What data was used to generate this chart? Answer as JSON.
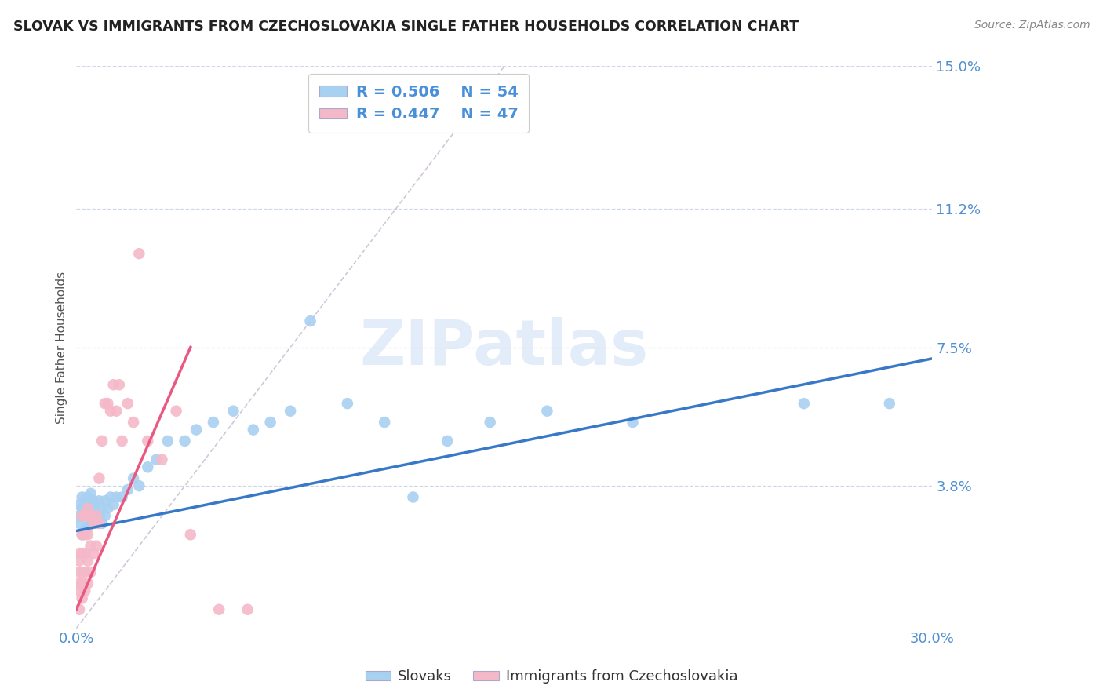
{
  "title": "SLOVAK VS IMMIGRANTS FROM CZECHOSLOVAKIA SINGLE FATHER HOUSEHOLDS CORRELATION CHART",
  "source": "Source: ZipAtlas.com",
  "ylabel": "Single Father Households",
  "xlim": [
    0.0,
    0.3
  ],
  "ylim": [
    0.0,
    0.15
  ],
  "xticks": [
    0.0,
    0.05,
    0.1,
    0.15,
    0.2,
    0.25,
    0.3
  ],
  "xticklabels": [
    "0.0%",
    "",
    "",
    "",
    "",
    "",
    "30.0%"
  ],
  "ytick_positions": [
    0.038,
    0.075,
    0.112,
    0.15
  ],
  "ytick_labels": [
    "3.8%",
    "7.5%",
    "11.2%",
    "15.0%"
  ],
  "blue_R": "0.506",
  "blue_N": "54",
  "pink_R": "0.447",
  "pink_N": "47",
  "blue_color": "#a8d0f0",
  "pink_color": "#f5b8c8",
  "blue_line_color": "#3878c8",
  "pink_line_color": "#e85880",
  "legend_label_blue": "Slovaks",
  "legend_label_pink": "Immigrants from Czechoslovakia",
  "blue_scatter_x": [
    0.001,
    0.001,
    0.001,
    0.002,
    0.002,
    0.002,
    0.002,
    0.003,
    0.003,
    0.003,
    0.004,
    0.004,
    0.004,
    0.005,
    0.005,
    0.005,
    0.006,
    0.006,
    0.007,
    0.007,
    0.008,
    0.008,
    0.009,
    0.009,
    0.01,
    0.01,
    0.011,
    0.012,
    0.013,
    0.014,
    0.016,
    0.018,
    0.02,
    0.022,
    0.025,
    0.028,
    0.032,
    0.038,
    0.042,
    0.048,
    0.055,
    0.062,
    0.068,
    0.075,
    0.082,
    0.095,
    0.108,
    0.118,
    0.13,
    0.145,
    0.165,
    0.195,
    0.255,
    0.285
  ],
  "blue_scatter_y": [
    0.028,
    0.03,
    0.033,
    0.025,
    0.03,
    0.032,
    0.035,
    0.026,
    0.03,
    0.034,
    0.027,
    0.031,
    0.035,
    0.028,
    0.032,
    0.036,
    0.03,
    0.034,
    0.028,
    0.033,
    0.03,
    0.034,
    0.028,
    0.032,
    0.03,
    0.034,
    0.032,
    0.035,
    0.033,
    0.035,
    0.035,
    0.037,
    0.04,
    0.038,
    0.043,
    0.045,
    0.05,
    0.05,
    0.053,
    0.055,
    0.058,
    0.053,
    0.055,
    0.058,
    0.082,
    0.06,
    0.055,
    0.035,
    0.05,
    0.055,
    0.058,
    0.055,
    0.06,
    0.06
  ],
  "pink_scatter_x": [
    0.001,
    0.001,
    0.001,
    0.001,
    0.001,
    0.001,
    0.002,
    0.002,
    0.002,
    0.002,
    0.002,
    0.002,
    0.003,
    0.003,
    0.003,
    0.003,
    0.003,
    0.004,
    0.004,
    0.004,
    0.004,
    0.005,
    0.005,
    0.005,
    0.006,
    0.006,
    0.007,
    0.007,
    0.008,
    0.008,
    0.009,
    0.01,
    0.011,
    0.012,
    0.013,
    0.014,
    0.015,
    0.016,
    0.018,
    0.02,
    0.022,
    0.025,
    0.03,
    0.035,
    0.04,
    0.05,
    0.06
  ],
  "pink_scatter_y": [
    0.005,
    0.01,
    0.012,
    0.015,
    0.018,
    0.02,
    0.008,
    0.012,
    0.015,
    0.02,
    0.025,
    0.03,
    0.01,
    0.015,
    0.02,
    0.025,
    0.03,
    0.012,
    0.018,
    0.025,
    0.032,
    0.015,
    0.022,
    0.03,
    0.02,
    0.028,
    0.022,
    0.03,
    0.028,
    0.04,
    0.05,
    0.06,
    0.06,
    0.058,
    0.065,
    0.058,
    0.065,
    0.05,
    0.06,
    0.055,
    0.1,
    0.05,
    0.045,
    0.058,
    0.025,
    0.005,
    0.005
  ],
  "watermark": "ZIPatlas",
  "background_color": "#ffffff",
  "grid_color": "#d0d8e8"
}
